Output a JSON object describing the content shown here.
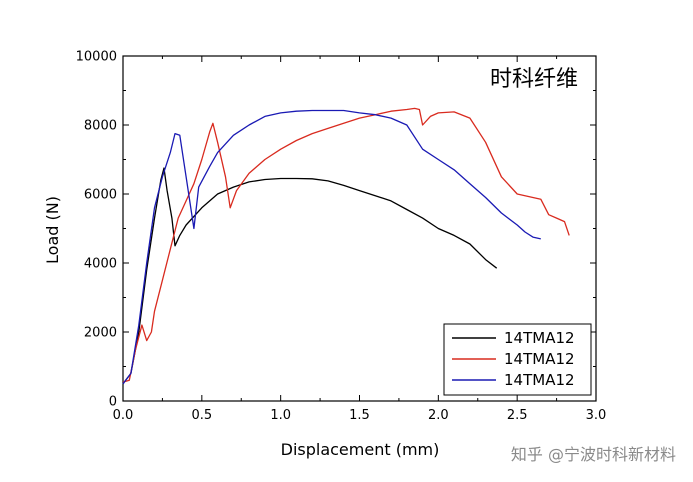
{
  "chart_data": {
    "type": "line",
    "xlabel": "Displacement (mm)",
    "ylabel": "Load (N)",
    "xlim": [
      0.0,
      3.0
    ],
    "ylim": [
      0,
      10000
    ],
    "xticks": [
      "0.0",
      "0.5",
      "1.0",
      "1.5",
      "2.0",
      "2.5",
      "3.0"
    ],
    "yticks": [
      "0",
      "2000",
      "4000",
      "6000",
      "8000",
      "10000"
    ],
    "annotation": "时科纤维",
    "legend_position": "bottom-right",
    "grid": false,
    "series": [
      {
        "name": "14TMA12",
        "color": "#000000",
        "points": [
          [
            0.0,
            500
          ],
          [
            0.05,
            800
          ],
          [
            0.1,
            2000
          ],
          [
            0.15,
            3800
          ],
          [
            0.2,
            5300
          ],
          [
            0.24,
            6400
          ],
          [
            0.26,
            6750
          ],
          [
            0.28,
            6100
          ],
          [
            0.31,
            5300
          ],
          [
            0.33,
            4500
          ],
          [
            0.36,
            4800
          ],
          [
            0.4,
            5100
          ],
          [
            0.5,
            5600
          ],
          [
            0.6,
            6000
          ],
          [
            0.7,
            6200
          ],
          [
            0.8,
            6350
          ],
          [
            0.9,
            6420
          ],
          [
            1.0,
            6450
          ],
          [
            1.1,
            6450
          ],
          [
            1.2,
            6440
          ],
          [
            1.3,
            6380
          ],
          [
            1.4,
            6250
          ],
          [
            1.5,
            6100
          ],
          [
            1.6,
            5950
          ],
          [
            1.7,
            5800
          ],
          [
            1.8,
            5550
          ],
          [
            1.9,
            5300
          ],
          [
            2.0,
            5000
          ],
          [
            2.1,
            4800
          ],
          [
            2.2,
            4550
          ],
          [
            2.3,
            4100
          ],
          [
            2.37,
            3850
          ]
        ]
      },
      {
        "name": "14TMA12",
        "color": "#d92b1f",
        "points": [
          [
            0.0,
            550
          ],
          [
            0.04,
            600
          ],
          [
            0.08,
            1500
          ],
          [
            0.12,
            2200
          ],
          [
            0.15,
            1750
          ],
          [
            0.18,
            2000
          ],
          [
            0.2,
            2600
          ],
          [
            0.25,
            3500
          ],
          [
            0.3,
            4400
          ],
          [
            0.35,
            5300
          ],
          [
            0.4,
            5800
          ],
          [
            0.45,
            6300
          ],
          [
            0.5,
            7000
          ],
          [
            0.55,
            7800
          ],
          [
            0.57,
            8050
          ],
          [
            0.6,
            7500
          ],
          [
            0.65,
            6500
          ],
          [
            0.68,
            5600
          ],
          [
            0.72,
            6100
          ],
          [
            0.8,
            6600
          ],
          [
            0.9,
            7000
          ],
          [
            1.0,
            7300
          ],
          [
            1.1,
            7550
          ],
          [
            1.2,
            7750
          ],
          [
            1.3,
            7900
          ],
          [
            1.4,
            8050
          ],
          [
            1.5,
            8200
          ],
          [
            1.6,
            8300
          ],
          [
            1.7,
            8400
          ],
          [
            1.8,
            8450
          ],
          [
            1.85,
            8480
          ],
          [
            1.88,
            8450
          ],
          [
            1.9,
            8000
          ],
          [
            1.95,
            8250
          ],
          [
            2.0,
            8350
          ],
          [
            2.1,
            8380
          ],
          [
            2.2,
            8200
          ],
          [
            2.3,
            7500
          ],
          [
            2.4,
            6500
          ],
          [
            2.5,
            6000
          ],
          [
            2.6,
            5900
          ],
          [
            2.65,
            5850
          ],
          [
            2.7,
            5400
          ],
          [
            2.75,
            5300
          ],
          [
            2.8,
            5200
          ],
          [
            2.83,
            4800
          ]
        ]
      },
      {
        "name": "14TMA12",
        "color": "#1a1ab4",
        "points": [
          [
            0.0,
            500
          ],
          [
            0.05,
            800
          ],
          [
            0.1,
            2200
          ],
          [
            0.15,
            4000
          ],
          [
            0.2,
            5600
          ],
          [
            0.25,
            6500
          ],
          [
            0.3,
            7200
          ],
          [
            0.33,
            7750
          ],
          [
            0.36,
            7700
          ],
          [
            0.4,
            6500
          ],
          [
            0.45,
            5000
          ],
          [
            0.48,
            6200
          ],
          [
            0.55,
            6800
          ],
          [
            0.6,
            7200
          ],
          [
            0.7,
            7700
          ],
          [
            0.8,
            8000
          ],
          [
            0.9,
            8250
          ],
          [
            1.0,
            8350
          ],
          [
            1.1,
            8400
          ],
          [
            1.2,
            8420
          ],
          [
            1.3,
            8420
          ],
          [
            1.4,
            8420
          ],
          [
            1.5,
            8350
          ],
          [
            1.6,
            8300
          ],
          [
            1.7,
            8200
          ],
          [
            1.8,
            8000
          ],
          [
            1.9,
            7300
          ],
          [
            2.0,
            7000
          ],
          [
            2.1,
            6700
          ],
          [
            2.2,
            6300
          ],
          [
            2.3,
            5900
          ],
          [
            2.4,
            5450
          ],
          [
            2.5,
            5100
          ],
          [
            2.55,
            4900
          ],
          [
            2.6,
            4750
          ],
          [
            2.65,
            4700
          ]
        ]
      }
    ]
  },
  "watermark": "知乎 @宁波时科新材料"
}
